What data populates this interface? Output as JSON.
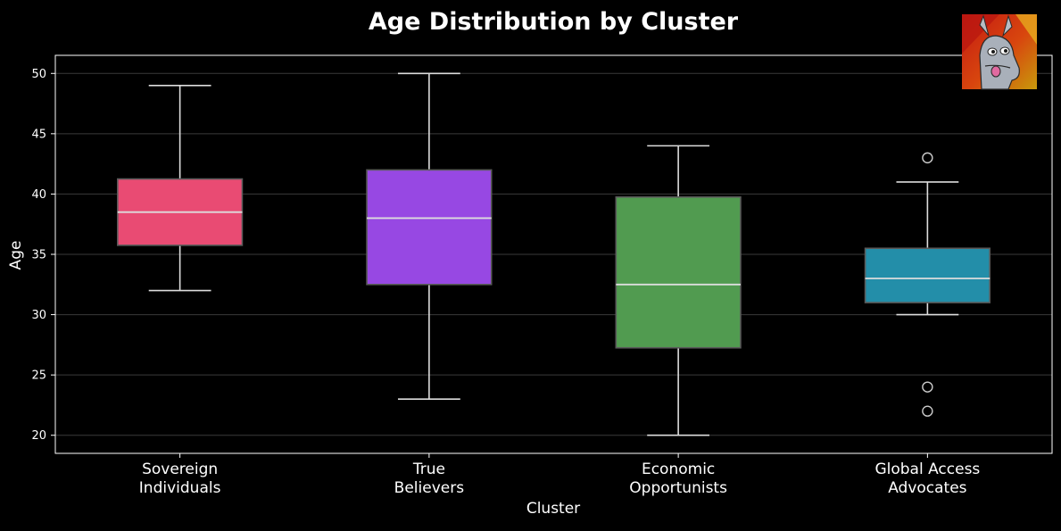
{
  "chart_data": {
    "type": "box",
    "title": "Age Distribution by Cluster",
    "xlabel": "Cluster",
    "ylabel": "Age",
    "ylim": [
      18.5,
      51.5
    ],
    "yticks": [
      20,
      25,
      30,
      35,
      40,
      45,
      50
    ],
    "grid": "horizontal",
    "categories": [
      {
        "line1": "Sovereign",
        "line2": "Individuals"
      },
      {
        "line1": "True",
        "line2": "Believers"
      },
      {
        "line1": "Economic",
        "line2": "Opportunists"
      },
      {
        "line1": "Global Access",
        "line2": "Advocates"
      }
    ],
    "series": [
      {
        "whisker_low": 32,
        "q1": 35.75,
        "median": 38.5,
        "q3": 41.25,
        "whisker_high": 49,
        "outliers": [],
        "color": "#e94b73"
      },
      {
        "whisker_low": 23,
        "q1": 32.5,
        "median": 38,
        "q3": 42,
        "whisker_high": 50,
        "outliers": [],
        "color": "#9748e3"
      },
      {
        "whisker_low": 20,
        "q1": 27.25,
        "median": 32.5,
        "q3": 39.75,
        "whisker_high": 44,
        "outliers": [],
        "color": "#519b50"
      },
      {
        "whisker_low": 30,
        "q1": 31,
        "median": 33,
        "q3": 35.5,
        "whisker_high": 41,
        "outliers": [
          43,
          24,
          22
        ],
        "color": "#238ea9"
      }
    ]
  },
  "colors": {
    "background": "#000000",
    "axis": "#ffffff",
    "grid": "#3a3a3a",
    "box_edge": "#5a5a5a",
    "whisker": "#dddddd",
    "median": "#dddddd"
  },
  "logo": {
    "icon": "llama-avatar-icon"
  }
}
